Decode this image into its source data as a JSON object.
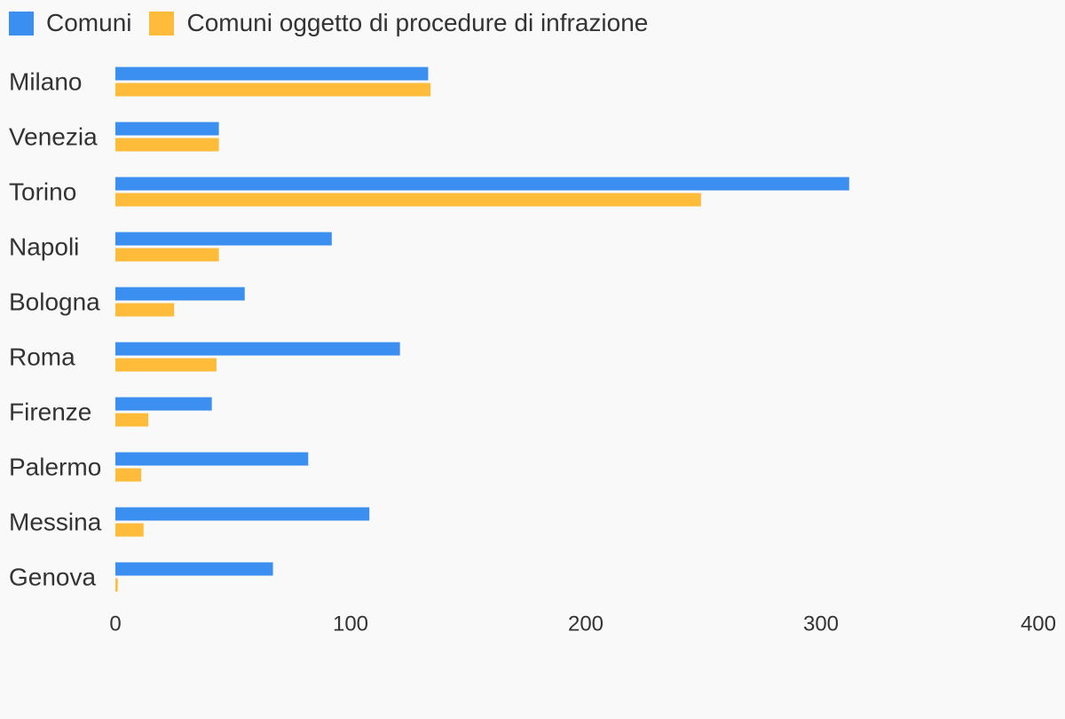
{
  "chart_data": {
    "type": "bar",
    "orientation": "horizontal",
    "title": "",
    "xlabel": "",
    "ylabel": "",
    "categories": [
      "Milano",
      "Venezia",
      "Torino",
      "Napoli",
      "Bologna",
      "Roma",
      "Firenze",
      "Palermo",
      "Messina",
      "Genova"
    ],
    "series": [
      {
        "name": "Comuni",
        "color": "#3a8ff0",
        "values": [
          133,
          44,
          312,
          92,
          55,
          121,
          41,
          82,
          108,
          67
        ]
      },
      {
        "name": "Comuni oggetto di procedure di infrazione",
        "color": "#ffbb3a",
        "values": [
          134,
          44,
          249,
          44,
          25,
          43,
          14,
          11,
          12,
          1
        ]
      }
    ],
    "xlim": [
      0,
      400
    ],
    "xticks": [
      "0",
      "100",
      "200",
      "300",
      "400"
    ],
    "grid": false,
    "legend_position": "top-left"
  }
}
